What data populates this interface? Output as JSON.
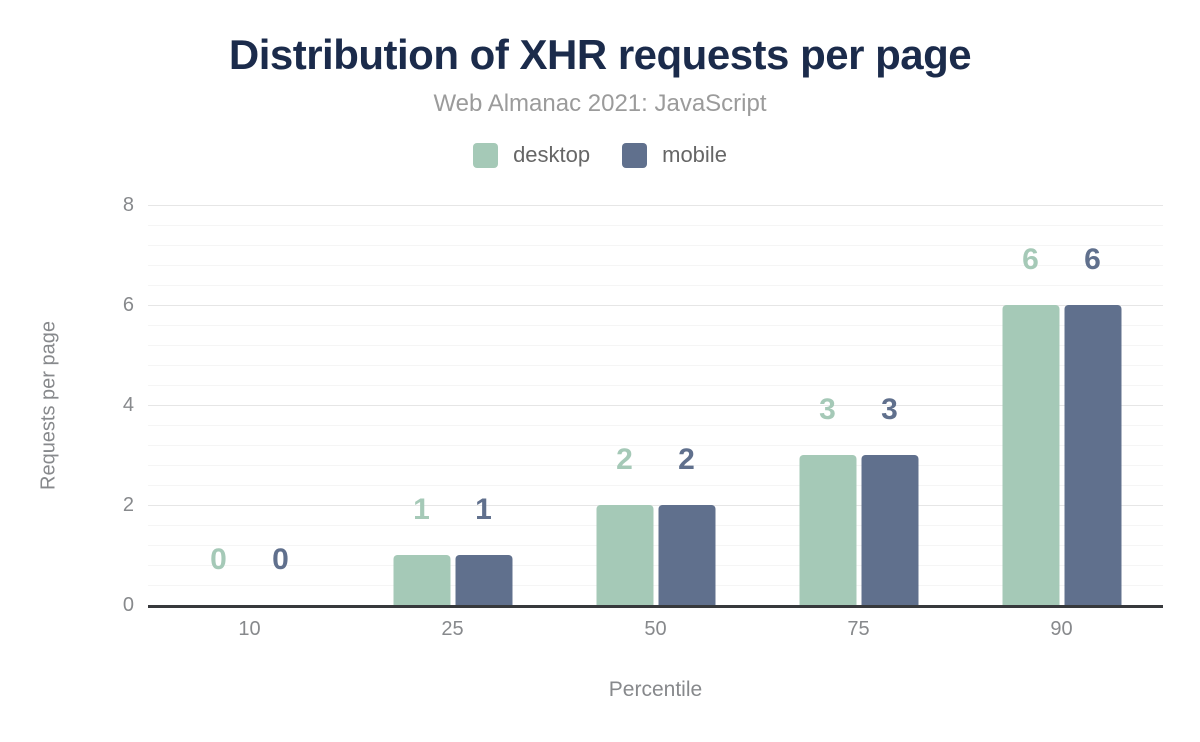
{
  "header": {
    "title": "Distribution of XHR requests per page",
    "subtitle": "Web Almanac 2021: JavaScript"
  },
  "styles": {
    "title_color": "#1b2b4b",
    "subtitle_color": "#9b9b9b",
    "axis_text_color": "#87898c",
    "legend_text_color": "#666666",
    "axis_line_color": "#37393c",
    "grid_major_color": "#e6e6e6",
    "grid_minor_color": "#f5f5f5",
    "background_color": "#ffffff"
  },
  "chart_data": {
    "type": "bar",
    "title": "Distribution of XHR requests per page",
    "subtitle": "Web Almanac 2021: JavaScript",
    "categories": [
      "10",
      "25",
      "50",
      "75",
      "90"
    ],
    "series": [
      {
        "name": "desktop",
        "color": "#a5c9b7",
        "values": [
          0,
          1,
          2,
          3,
          6
        ]
      },
      {
        "name": "mobile",
        "color": "#60708d",
        "values": [
          0,
          1,
          2,
          3,
          6
        ]
      }
    ],
    "xlabel": "Percentile",
    "ylabel": "Requests per page",
    "ylim": [
      0,
      8
    ],
    "yticks": [
      0,
      2,
      4,
      6,
      8
    ],
    "minor_tick_interval": 0.4,
    "grid": true,
    "legend_position": "top",
    "value_labels": true
  }
}
